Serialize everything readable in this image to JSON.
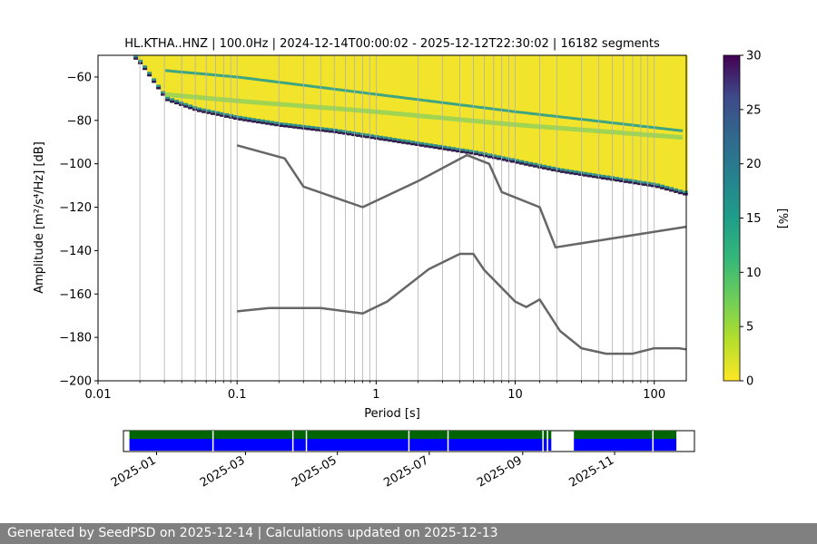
{
  "chart_data": {
    "type": "heatmap",
    "title": "HL.KTHA..HNZ | 100.0Hz | 2024-12-14T00:00:02 - 2025-12-12T22:30:02 | 16182 segments",
    "xlabel": "Period [s]",
    "ylabel": "Amplitude [m²/s⁴/Hz] [dB]",
    "xscale": "log",
    "xlim": [
      0.01,
      170
    ],
    "ylim": [
      -200,
      -50
    ],
    "x_ticks": [
      {
        "v": 0.01,
        "label": "0.01"
      },
      {
        "v": 0.1,
        "label": "0.1"
      },
      {
        "v": 1,
        "label": "1"
      },
      {
        "v": 10,
        "label": "10"
      },
      {
        "v": 100,
        "label": "100"
      }
    ],
    "y_ticks": [
      -60,
      -80,
      -100,
      -120,
      -140,
      -160,
      -180,
      -200
    ],
    "grid": true,
    "colorbar": {
      "label": "[%]",
      "range": [
        0,
        30
      ],
      "ticks": [
        0,
        5,
        10,
        15,
        20,
        25,
        30
      ],
      "colormap": "viridis_r"
    },
    "psd_band": {
      "note_periods": [
        0.018,
        0.02,
        0.03,
        0.05,
        0.1,
        0.2,
        0.5,
        1,
        2,
        5,
        10,
        20,
        50,
        100,
        170
      ],
      "lower_edge_db": [
        -52,
        -55,
        -71,
        -76,
        -80,
        -83,
        -86,
        -89,
        -92,
        -96,
        -100,
        -104,
        -108,
        -111,
        -115
      ],
      "upper_edge_db": [
        -50,
        -50,
        -50,
        -50,
        -50,
        -50,
        -50,
        -50,
        -50,
        -50,
        -50,
        -50,
        -50,
        -50,
        -50
      ],
      "mode_lines": [
        {
          "name": "",
          "periods": [
            0.03,
            0.1,
            1,
            10,
            170
          ],
          "db": [
            -57,
            -60,
            -68,
            -76,
            -85
          ]
        },
        {
          "name": "",
          "periods": [
            0.03,
            0.1,
            1,
            10,
            170
          ],
          "db": [
            -68,
            -71,
            -76,
            -82,
            -88
          ]
        }
      ]
    },
    "series": [
      {
        "name": "",
        "x": [
          0.1,
          0.22,
          0.3,
          0.8,
          2.0,
          4.5,
          6.5,
          8.0,
          15.0,
          19.5,
          170
        ],
        "y": [
          -91.5,
          -97.5,
          -110.5,
          -120,
          -108,
          -96,
          -100,
          -113,
          -120,
          -138.5,
          -129
        ]
      },
      {
        "name": "",
        "x": [
          0.1,
          0.17,
          0.4,
          0.8,
          1.2,
          2.4,
          4.0,
          5.0,
          6.0,
          10.0,
          12.0,
          15.0,
          21.0,
          30.0,
          45.0,
          70.0,
          100.0,
          150.0,
          170.0
        ],
        "y": [
          -168,
          -166.5,
          -166.5,
          -169,
          -163.5,
          -148.5,
          -141.5,
          -141.5,
          -149,
          -163.5,
          -166,
          -162.5,
          -177,
          -185,
          -187.5,
          -187.5,
          -185,
          -185,
          -185.5
        ]
      }
    ],
    "grid_periods": [
      0.02,
      0.03,
      0.04,
      0.05,
      0.06,
      0.07,
      0.08,
      0.09,
      0.1,
      0.2,
      0.3,
      0.4,
      0.5,
      0.6,
      0.7,
      0.8,
      0.9,
      1,
      2,
      3,
      4,
      5,
      6,
      7,
      8,
      9,
      10,
      15,
      20,
      30,
      40,
      50,
      60,
      70,
      80,
      90,
      100
    ],
    "timeline": {
      "start": "2024-12-14",
      "end": "2025-12-12",
      "axis_start": "2024-12-10",
      "axis_end": "2025-12-24",
      "tick_labels": [
        "2025-01",
        "2025-03",
        "2025-05",
        "2025-07",
        "2025-09",
        "2025-11"
      ],
      "tick_dates": [
        "2025-01-01",
        "2025-03-01",
        "2025-05-01",
        "2025-07-01",
        "2025-09-01",
        "2025-11-01"
      ],
      "available": [
        [
          "2024-12-14",
          "2025-09-20"
        ],
        [
          "2025-10-05",
          "2025-12-12"
        ]
      ],
      "gaps": [
        "2025-02-07",
        "2025-04-01",
        "2025-04-10",
        "2025-06-17",
        "2025-07-13",
        "2025-09-14",
        "2025-09-17",
        "2025-11-26"
      ],
      "colors": {
        "used": "#006400",
        "available": "#0000ff"
      }
    }
  },
  "footer": {
    "text": "Generated by SeedPSD on 2025-12-14 | Calculations updated on 2025-12-13"
  }
}
